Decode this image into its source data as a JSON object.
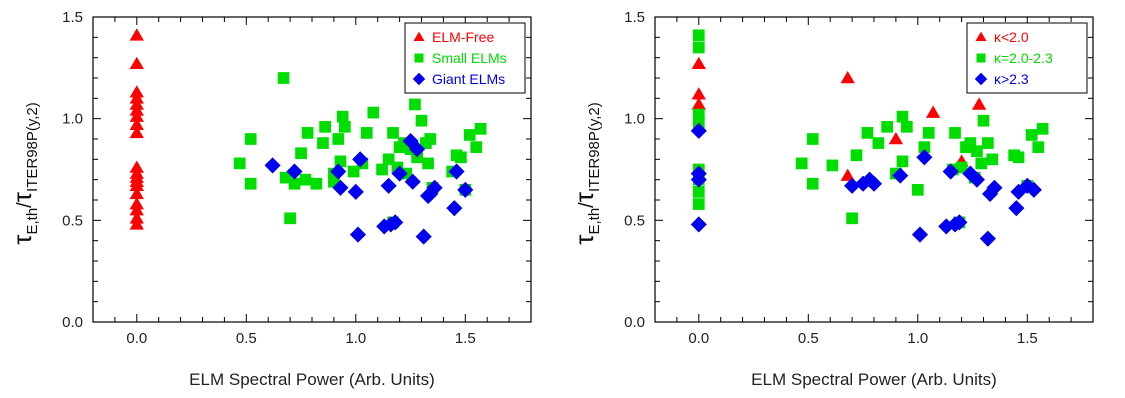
{
  "chart_data": [
    {
      "type": "scatter",
      "xlabel": "ELM Spectral Power (Arb. Units)",
      "ylabel": {
        "tau": "τ",
        "sub1": "E,th",
        "slash": "/",
        "tau2": "τ",
        "sub2": "ITER98P(y,2)"
      },
      "xlim": [
        -0.2,
        1.8
      ],
      "ylim": [
        0.0,
        1.5
      ],
      "xticks": [
        "0.0",
        "0.5",
        "1.0",
        "1.5"
      ],
      "yticks": [
        "0.0",
        "0.5",
        "1.0",
        "1.5"
      ],
      "legend_position": "top-right",
      "grid": false,
      "series": [
        {
          "name": "ELM-Free",
          "marker": "triangle",
          "color": "#ff0000",
          "x": [
            0,
            0,
            0,
            0,
            0,
            0,
            0,
            0,
            0,
            0,
            0,
            0,
            0,
            0,
            0,
            0,
            0,
            0,
            0
          ],
          "y": [
            1.41,
            1.27,
            1.13,
            1.1,
            1.07,
            1.04,
            1.01,
            0.97,
            0.93,
            0.76,
            0.73,
            0.71,
            0.69,
            0.67,
            0.63,
            0.58,
            0.55,
            0.51,
            0.48
          ]
        },
        {
          "name": "Small ELMs",
          "marker": "square",
          "color": "#00dd00",
          "x": [
            0.47,
            0.52,
            0.52,
            0.67,
            0.68,
            0.7,
            0.72,
            0.75,
            0.77,
            0.78,
            0.82,
            0.85,
            0.86,
            0.9,
            0.9,
            0.92,
            0.93,
            0.94,
            0.95,
            0.99,
            1.03,
            1.05,
            1.08,
            1.12,
            1.15,
            1.17,
            1.17,
            1.19,
            1.2,
            1.22,
            1.23,
            1.25,
            1.27,
            1.28,
            1.3,
            1.32,
            1.33,
            1.34,
            1.35,
            1.44,
            1.46,
            1.48,
            1.5,
            1.52,
            1.55,
            1.57
          ],
          "y": [
            0.78,
            0.9,
            0.68,
            1.2,
            0.71,
            0.51,
            0.68,
            0.83,
            0.7,
            0.93,
            0.68,
            0.88,
            0.96,
            0.73,
            0.69,
            0.9,
            0.79,
            1.01,
            0.96,
            0.74,
            0.78,
            0.93,
            1.03,
            0.75,
            0.8,
            0.93,
            0.49,
            0.76,
            0.86,
            0.88,
            0.73,
            0.85,
            1.07,
            0.81,
            0.99,
            0.88,
            0.78,
            0.9,
            0.66,
            0.74,
            0.82,
            0.81,
            0.65,
            0.92,
            0.86,
            0.95
          ]
        },
        {
          "name": "Giant ELMs",
          "marker": "diamond",
          "color": "#0000ee",
          "x": [
            0.62,
            0.72,
            0.92,
            0.93,
            1.0,
            1.01,
            1.02,
            1.13,
            1.15,
            1.16,
            1.18,
            1.2,
            1.25,
            1.26,
            1.28,
            1.31,
            1.33,
            1.34,
            1.36,
            1.45,
            1.46,
            1.5
          ],
          "y": [
            0.77,
            0.74,
            0.74,
            0.66,
            0.64,
            0.43,
            0.8,
            0.47,
            0.67,
            0.48,
            0.49,
            0.73,
            0.89,
            0.69,
            0.85,
            0.42,
            0.62,
            0.63,
            0.66,
            0.56,
            0.74,
            0.65
          ]
        }
      ]
    },
    {
      "type": "scatter",
      "xlabel": "ELM Spectral Power (Arb. Units)",
      "ylabel": {
        "tau": "τ",
        "sub1": "E,th",
        "slash": "/",
        "tau2": "τ",
        "sub2": "ITER98P(y,2)"
      },
      "xlim": [
        -0.2,
        1.8
      ],
      "ylim": [
        0.0,
        1.5
      ],
      "xticks": [
        "0.0",
        "0.5",
        "1.0",
        "1.5"
      ],
      "yticks": [
        "0.0",
        "0.5",
        "1.0",
        "1.5"
      ],
      "legend_position": "top-right",
      "grid": false,
      "series": [
        {
          "name": "κ<2.0",
          "marker": "triangle",
          "color": "#ff0000",
          "x": [
            0,
            0,
            0,
            0.68,
            0.68,
            0.9,
            1.07,
            1.2,
            1.28
          ],
          "y": [
            1.27,
            1.12,
            1.07,
            1.2,
            0.72,
            0.9,
            1.03,
            0.79,
            1.07
          ]
        },
        {
          "name": "κ=2.0-2.3",
          "marker": "square",
          "color": "#00dd00",
          "x": [
            0,
            0,
            0,
            0,
            0,
            0,
            0,
            0,
            0.47,
            0.52,
            0.52,
            0.61,
            0.7,
            0.72,
            0.77,
            0.82,
            0.86,
            0.9,
            0.93,
            0.93,
            0.95,
            1.0,
            1.03,
            1.05,
            1.16,
            1.17,
            1.19,
            1.2,
            1.22,
            1.24,
            1.26,
            1.27,
            1.29,
            1.3,
            1.32,
            1.34,
            1.44,
            1.46,
            1.5,
            1.52,
            1.55,
            1.57
          ],
          "y": [
            1.41,
            1.35,
            1.02,
            0.98,
            0.75,
            0.7,
            0.64,
            0.58,
            0.78,
            0.9,
            0.68,
            0.77,
            0.51,
            0.82,
            0.93,
            0.88,
            0.96,
            0.73,
            0.79,
            1.01,
            0.96,
            0.65,
            0.86,
            0.93,
            0.75,
            0.93,
            0.49,
            0.76,
            0.86,
            0.88,
            0.71,
            0.84,
            0.78,
            0.99,
            0.88,
            0.8,
            0.82,
            0.81,
            0.67,
            0.92,
            0.86,
            0.95
          ]
        },
        {
          "name": "κ>2.3",
          "marker": "diamond",
          "color": "#0000ee",
          "x": [
            0,
            0,
            0,
            0,
            0.7,
            0.75,
            0.78,
            0.8,
            0.92,
            1.01,
            1.03,
            1.13,
            1.15,
            1.17,
            1.19,
            1.24,
            1.27,
            1.32,
            1.33,
            1.35,
            1.45,
            1.46,
            1.5,
            1.53
          ],
          "y": [
            0.94,
            0.73,
            0.7,
            0.48,
            0.67,
            0.68,
            0.7,
            0.68,
            0.72,
            0.43,
            0.81,
            0.47,
            0.74,
            0.48,
            0.49,
            0.73,
            0.7,
            0.41,
            0.63,
            0.66,
            0.56,
            0.64,
            0.67,
            0.65
          ]
        }
      ]
    }
  ]
}
